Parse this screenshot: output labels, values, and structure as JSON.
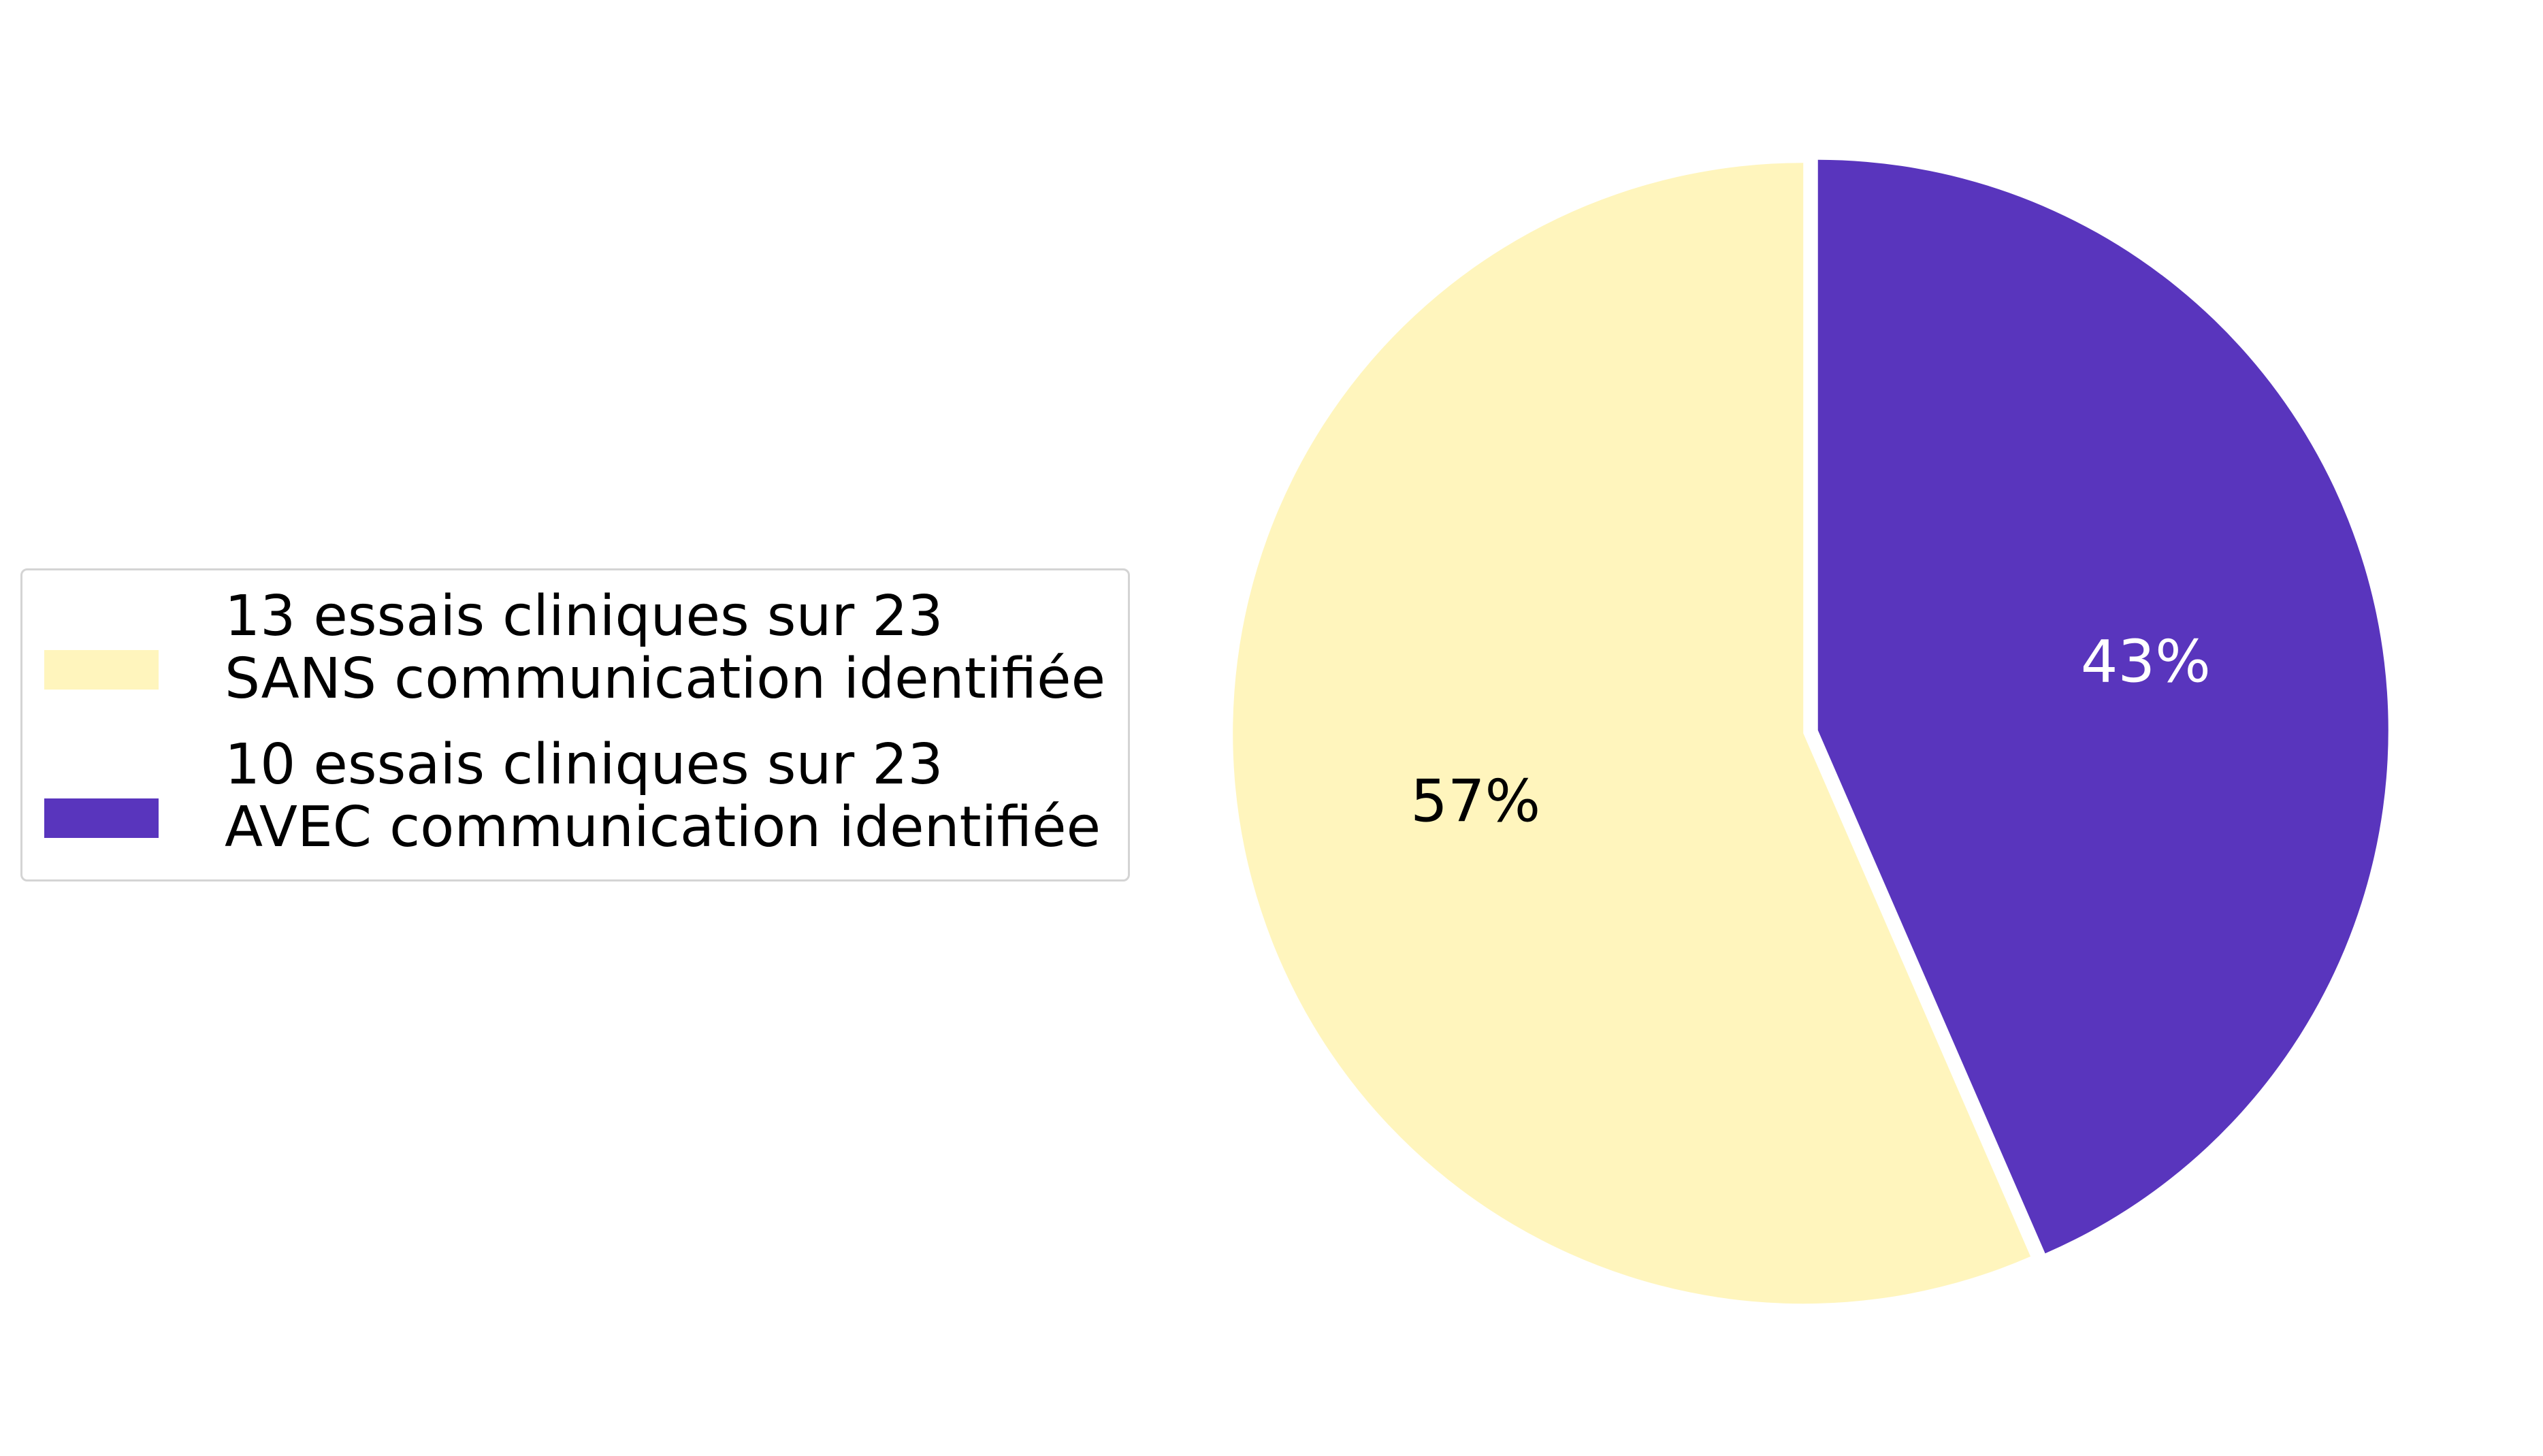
{
  "chart_data": {
    "type": "pie",
    "title": "",
    "legend_position": "left",
    "slices": [
      {
        "label_line1": "13 essais cliniques sur 23",
        "label_line2": "SANS communication identifiée",
        "value": 13,
        "percent_label": "57%",
        "color": "#fff5bd",
        "text_color": "#000000"
      },
      {
        "label_line1": "10 essais cliniques sur 23",
        "label_line2": "AVEC communication identifiée",
        "value": 10,
        "percent_label": "43%",
        "color": "#5935bd",
        "text_color": "#ffffff"
      }
    ],
    "total": 23,
    "start": "top",
    "direction": "counterclockwise"
  }
}
